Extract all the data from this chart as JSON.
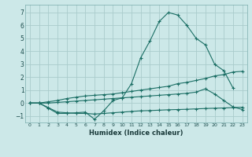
{
  "xlabel": "Humidex (Indice chaleur)",
  "x_values": [
    0,
    1,
    2,
    3,
    4,
    5,
    6,
    7,
    8,
    9,
    10,
    11,
    12,
    13,
    14,
    15,
    16,
    17,
    18,
    19,
    20,
    21,
    22,
    23
  ],
  "main_line": [
    0.0,
    0.0,
    -0.4,
    -0.8,
    -0.8,
    -0.75,
    -0.7,
    -1.25,
    -0.6,
    0.2,
    0.4,
    1.5,
    3.5,
    4.8,
    6.3,
    7.0,
    6.8,
    6.0,
    5.0,
    4.5,
    3.0,
    2.5,
    1.15,
    null
  ],
  "upper_line": [
    0.0,
    0.0,
    0.1,
    0.2,
    0.35,
    0.45,
    0.55,
    0.6,
    0.65,
    0.7,
    0.8,
    0.9,
    1.0,
    1.1,
    1.2,
    1.3,
    1.5,
    1.6,
    1.75,
    1.9,
    2.1,
    2.2,
    2.4,
    2.45
  ],
  "mid_line": [
    0.0,
    0.0,
    0.0,
    0.05,
    0.1,
    0.15,
    0.2,
    0.25,
    0.3,
    0.35,
    0.4,
    0.45,
    0.5,
    0.55,
    0.6,
    0.65,
    0.7,
    0.75,
    0.85,
    1.1,
    0.7,
    0.2,
    -0.3,
    -0.5
  ],
  "lower_line": [
    0.0,
    0.0,
    -0.35,
    -0.7,
    -0.75,
    -0.8,
    -0.8,
    -0.85,
    -0.8,
    -0.75,
    -0.7,
    -0.65,
    -0.6,
    -0.58,
    -0.55,
    -0.52,
    -0.5,
    -0.48,
    -0.45,
    -0.42,
    -0.4,
    -0.38,
    -0.35,
    -0.32
  ],
  "bg_color": "#cce8e8",
  "line_color": "#1a6e64",
  "grid_color": "#aacccc",
  "ylim": [
    -1.5,
    7.6
  ],
  "xlim": [
    -0.5,
    23.5
  ],
  "yticks": [
    -1,
    0,
    1,
    2,
    3,
    4,
    5,
    6,
    7
  ],
  "xticks": [
    0,
    1,
    2,
    3,
    4,
    5,
    6,
    7,
    8,
    9,
    10,
    11,
    12,
    13,
    14,
    15,
    16,
    17,
    18,
    19,
    20,
    21,
    22,
    23
  ]
}
